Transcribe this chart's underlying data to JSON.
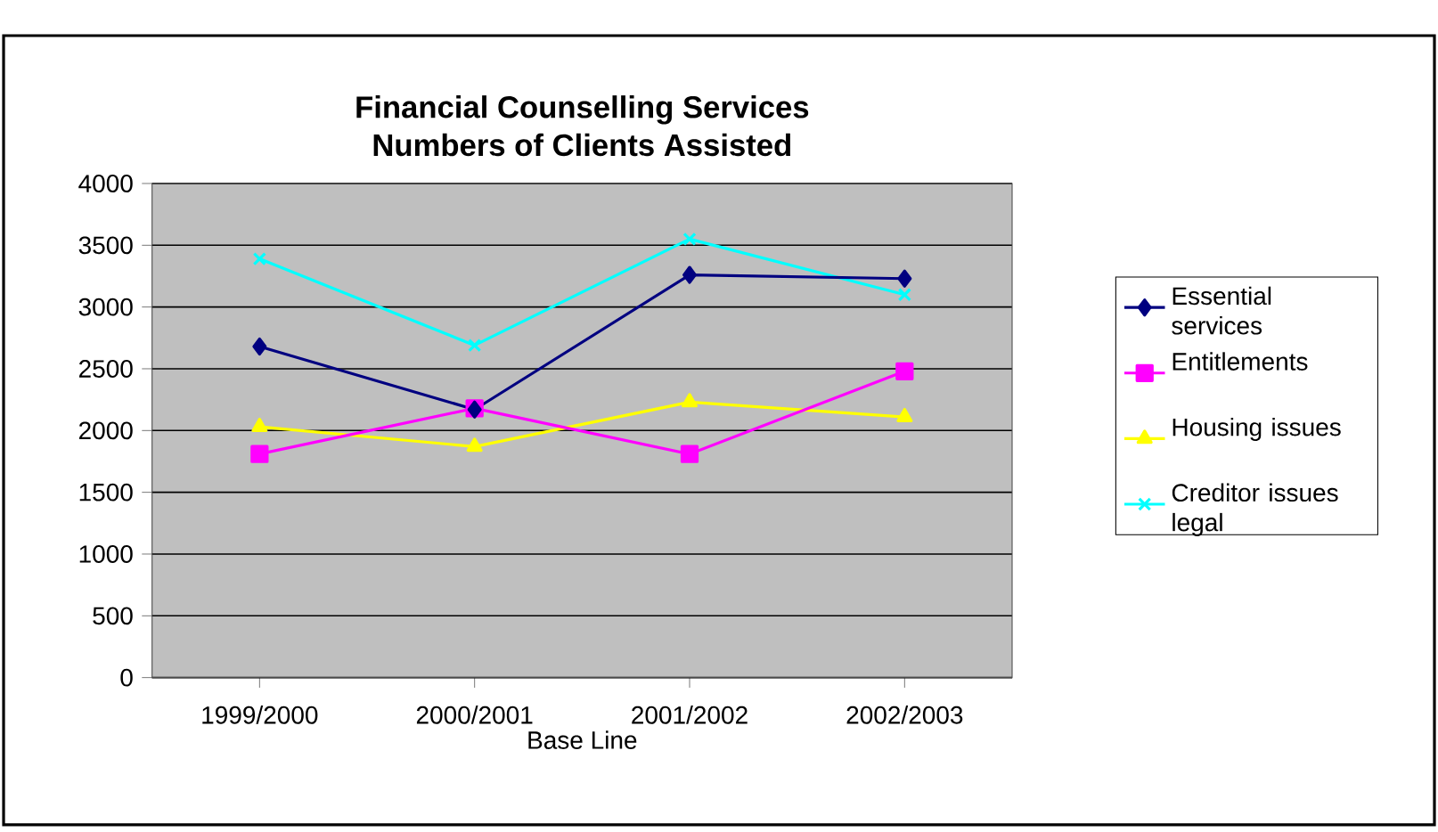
{
  "chart_data": {
    "type": "line",
    "title": "Financial Counselling Services",
    "subtitle": "Numbers of Clients Assisted",
    "xlabel": "Base Line",
    "categories": [
      "1999/2000",
      "2000/2001",
      "2001/2002",
      "2002/2003"
    ],
    "series": [
      {
        "name": "Essential services",
        "color": "#000080",
        "marker": "diamond",
        "values": [
          2680,
          2170,
          3260,
          3230
        ]
      },
      {
        "name": "Entitlements",
        "color": "#ff00ff",
        "marker": "square",
        "values": [
          1810,
          2180,
          1810,
          2480
        ]
      },
      {
        "name": "Housing issues",
        "color": "#ffff00",
        "marker": "triangle",
        "values": [
          2030,
          1870,
          2230,
          2110
        ]
      },
      {
        "name": "Creditor issues legal",
        "color": "#00ffff",
        "marker": "cross",
        "values": [
          3390,
          2690,
          3550,
          3100
        ]
      }
    ],
    "ylim": [
      0,
      4000
    ],
    "yticks": [
      0,
      500,
      1000,
      1500,
      2000,
      2500,
      3000,
      3500,
      4000
    ],
    "grid": "y",
    "legend": "right",
    "line_style": "solid"
  }
}
